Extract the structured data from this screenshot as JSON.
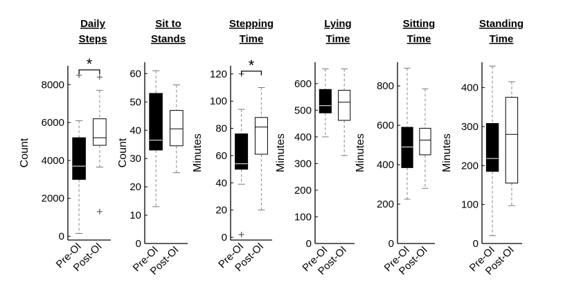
{
  "chart_data": [
    {
      "type": "box",
      "title_lines": [
        "Daily",
        "Steps"
      ],
      "ylabel": "Count",
      "ylim": [
        -200,
        9000
      ],
      "yticks": [
        0,
        2000,
        4000,
        6000,
        8000
      ],
      "categories": [
        "Pre-OI",
        "Post-OI"
      ],
      "boxes": [
        {
          "name": "Pre-OI",
          "fill": "#000000",
          "min": 150,
          "q1": 3000,
          "median": 3700,
          "q3": 5200,
          "max": 6100,
          "outliers": [
            8500
          ]
        },
        {
          "name": "Post-OI",
          "fill": "#ffffff",
          "min": 3650,
          "q1": 4800,
          "median": 5200,
          "q3": 6200,
          "max": 7700,
          "outliers": [
            8400,
            1300
          ]
        }
      ],
      "significance": {
        "label": "*",
        "between": [
          "Pre-OI",
          "Post-OI"
        ],
        "y": 8780
      }
    },
    {
      "type": "box",
      "title_lines": [
        "Sit to",
        "Stands"
      ],
      "ylabel": "Count",
      "ylim": [
        0,
        64
      ],
      "yticks": [
        0,
        10,
        20,
        30,
        40,
        50,
        60
      ],
      "categories": [
        "Pre-OI",
        "Post-OI"
      ],
      "boxes": [
        {
          "name": "Pre-OI",
          "fill": "#000000",
          "min": 13,
          "q1": 33,
          "median": 36.5,
          "q3": 53,
          "max": 61,
          "outliers": []
        },
        {
          "name": "Post-OI",
          "fill": "#ffffff",
          "min": 25,
          "q1": 34.5,
          "median": 40.5,
          "q3": 47,
          "max": 56,
          "outliers": []
        }
      ]
    },
    {
      "type": "box",
      "title_lines": [
        "Stepping",
        "Time"
      ],
      "ylabel": "Minutes",
      "ylim": [
        -2,
        126
      ],
      "yticks": [
        0,
        20,
        40,
        60,
        80,
        100,
        120
      ],
      "categories": [
        "Pre-OI",
        "Post-OI"
      ],
      "boxes": [
        {
          "name": "Pre-OI",
          "fill": "#000000",
          "min": 39,
          "q1": 50,
          "median": 54,
          "q3": 76,
          "max": 94,
          "outliers": [
            120,
            2
          ]
        },
        {
          "name": "Post-OI",
          "fill": "#ffffff",
          "min": 20,
          "q1": 61,
          "median": 81,
          "q3": 88,
          "max": 110,
          "outliers": []
        }
      ],
      "significance": {
        "label": "*",
        "between": [
          "Pre-OI",
          "Post-OI"
        ],
        "y": 122
      }
    },
    {
      "type": "box",
      "title_lines": [
        "Lying",
        "Time"
      ],
      "ylabel": "Minutes",
      "ylim": [
        0,
        680
      ],
      "yticks": [
        0,
        100,
        200,
        300,
        400,
        500,
        600
      ],
      "categories": [
        "Pre-OI",
        "Post-OI"
      ],
      "boxes": [
        {
          "name": "Pre-OI",
          "fill": "#000000",
          "min": 400,
          "q1": 490,
          "median": 517,
          "q3": 578,
          "max": 655,
          "outliers": []
        },
        {
          "name": "Post-OI",
          "fill": "#ffffff",
          "min": 330,
          "q1": 462,
          "median": 530,
          "q3": 575,
          "max": 655,
          "outliers": []
        }
      ]
    },
    {
      "type": "box",
      "title_lines": [
        "Sitting",
        "Time"
      ],
      "ylabel": "Minutes",
      "ylim": [
        0,
        920
      ],
      "yticks": [
        0,
        200,
        400,
        600,
        800
      ],
      "categories": [
        "Pre-OI",
        "Post-OI"
      ],
      "boxes": [
        {
          "name": "Pre-OI",
          "fill": "#000000",
          "min": 225,
          "q1": 385,
          "median": 490,
          "q3": 590,
          "max": 890,
          "outliers": []
        },
        {
          "name": "Post-OI",
          "fill": "#ffffff",
          "min": 280,
          "q1": 450,
          "median": 525,
          "q3": 585,
          "max": 785,
          "outliers": []
        }
      ]
    },
    {
      "type": "box",
      "title_lines": [
        "Standing",
        "Time"
      ],
      "ylabel": "Minutes",
      "ylim": [
        0,
        465
      ],
      "yticks": [
        0,
        100,
        200,
        300,
        400
      ],
      "categories": [
        "Pre-OI",
        "Post-OI"
      ],
      "boxes": [
        {
          "name": "Pre-OI",
          "fill": "#000000",
          "min": 20,
          "q1": 185,
          "median": 218,
          "q3": 308,
          "max": 455,
          "outliers": []
        },
        {
          "name": "Post-OI",
          "fill": "#ffffff",
          "min": 97,
          "q1": 155,
          "median": 280,
          "q3": 375,
          "max": 415,
          "outliers": []
        }
      ]
    }
  ]
}
